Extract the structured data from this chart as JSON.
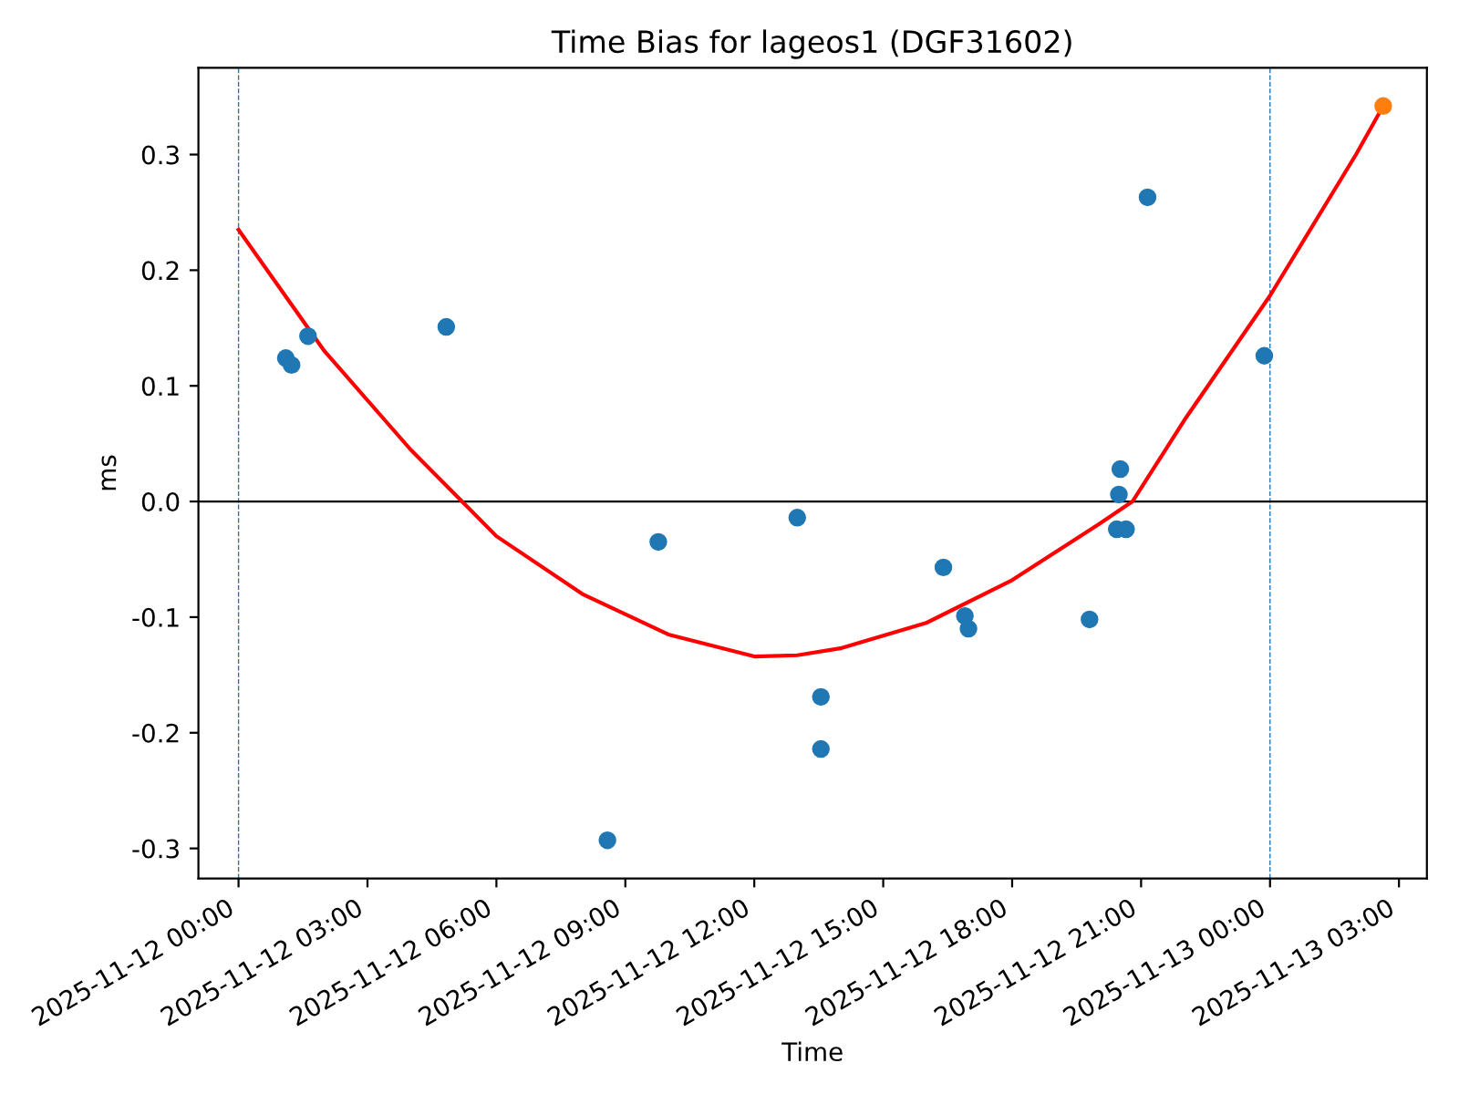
{
  "chart_data": {
    "type": "scatter",
    "title": "Time Bias for lageos1 (DGF31602)",
    "xlabel": "Time",
    "ylabel": "ms",
    "xlim": [
      "2025-11-11T23:04",
      "2025-11-13T03:39"
    ],
    "ylim": [
      -0.326,
      0.375
    ],
    "xticks": [
      {
        "value": "2025-11-12T00:00",
        "label": "2025-11-12 00:00"
      },
      {
        "value": "2025-11-12T03:00",
        "label": "2025-11-12 03:00"
      },
      {
        "value": "2025-11-12T06:00",
        "label": "2025-11-12 06:00"
      },
      {
        "value": "2025-11-12T09:00",
        "label": "2025-11-12 09:00"
      },
      {
        "value": "2025-11-12T12:00",
        "label": "2025-11-12 12:00"
      },
      {
        "value": "2025-11-12T15:00",
        "label": "2025-11-12 15:00"
      },
      {
        "value": "2025-11-12T18:00",
        "label": "2025-11-12 18:00"
      },
      {
        "value": "2025-11-12T21:00",
        "label": "2025-11-12 21:00"
      },
      {
        "value": "2025-11-13T00:00",
        "label": "2025-11-13 00:00"
      },
      {
        "value": "2025-11-13T03:00",
        "label": "2025-11-13 03:00"
      }
    ],
    "yticks": [
      -0.3,
      -0.2,
      -0.1,
      {
        "value": 0,
        "label": "0.0"
      },
      0.1,
      0.2,
      0.3
    ],
    "grid": false,
    "legend": false,
    "ref_lines": [
      {
        "axis": "x",
        "value": "2025-11-12T00:00",
        "color": "#1f77b4",
        "line_style": "dashed"
      },
      {
        "axis": "x",
        "value": "2025-11-13T00:00",
        "color": "#1f77b4",
        "line_style": "dashed"
      },
      {
        "axis": "y",
        "value": 0.0,
        "color": "#000000",
        "line_style": "solid"
      }
    ],
    "series": [
      {
        "color": "#1f77b4",
        "marker": "circle",
        "x": [
          "2025-11-12T01:06",
          "2025-11-12T01:14",
          "2025-11-12T01:37",
          "2025-11-12T04:50",
          "2025-11-12T08:35",
          "2025-11-12T09:46",
          "2025-11-12T13:00",
          "2025-11-12T13:33",
          "2025-11-12T13:33",
          "2025-11-12T16:24",
          "2025-11-12T16:54",
          "2025-11-12T16:59",
          "2025-11-12T19:48",
          "2025-11-12T20:26",
          "2025-11-12T20:29",
          "2025-11-12T20:31",
          "2025-11-12T20:39",
          "2025-11-12T21:09",
          "2025-11-12T23:52"
        ],
        "values": [
          0.124,
          0.118,
          0.143,
          0.151,
          -0.293,
          -0.035,
          -0.014,
          -0.169,
          -0.214,
          -0.057,
          -0.099,
          -0.11,
          -0.102,
          -0.024,
          0.006,
          0.028,
          -0.024,
          0.263,
          0.126
        ]
      },
      {
        "color": "#ff7f0e",
        "marker": "circle",
        "x": [
          "2025-11-13T02:38"
        ],
        "values": [
          0.342
        ]
      },
      {
        "type": "line",
        "color": "#ff0000",
        "marker": "none",
        "line_style": "solid",
        "x": [
          "2025-11-12T00:00",
          "2025-11-12T02:00",
          "2025-11-12T04:00",
          "2025-11-12T05:12",
          "2025-11-12T06:00",
          "2025-11-12T08:00",
          "2025-11-12T10:00",
          "2025-11-12T12:00",
          "2025-11-12T13:00",
          "2025-11-12T14:00",
          "2025-11-12T16:00",
          "2025-11-12T18:00",
          "2025-11-12T20:00",
          "2025-11-12T20:48",
          "2025-11-12T22:00",
          "2025-11-13T00:00",
          "2025-11-13T02:00",
          "2025-11-13T02:38"
        ],
        "values": [
          0.235,
          0.13,
          0.045,
          0.0,
          -0.03,
          -0.08,
          -0.115,
          -0.134,
          -0.133,
          -0.127,
          -0.105,
          -0.068,
          -0.02,
          0.0,
          0.07,
          0.178,
          0.3,
          0.342
        ]
      }
    ]
  }
}
